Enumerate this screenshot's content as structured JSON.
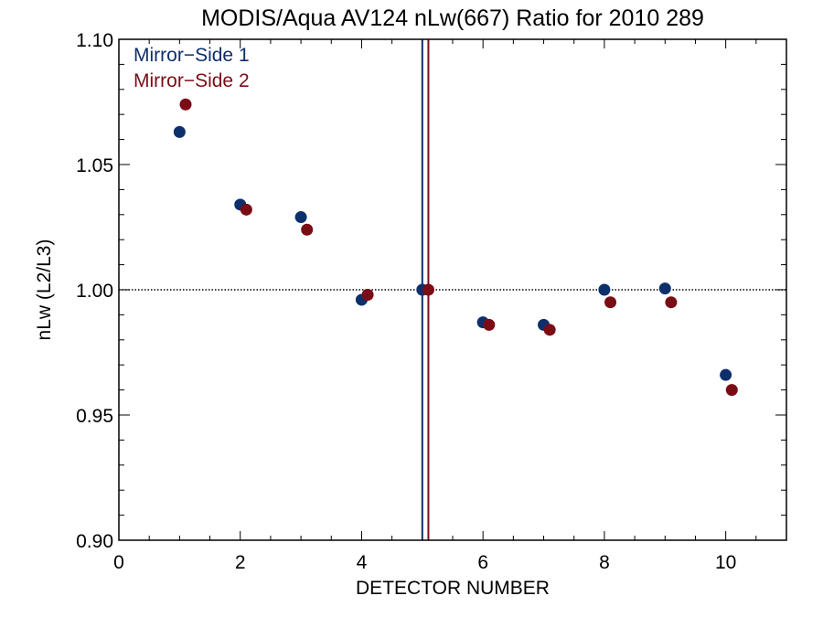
{
  "chart_data": {
    "type": "scatter",
    "title": "MODIS/Aqua AV124 nLw(667) Ratio for 2010 289",
    "xlabel": "DETECTOR NUMBER",
    "ylabel": "nLw (L2/L3)",
    "xlim": [
      0,
      11
    ],
    "ylim": [
      0.9,
      1.1
    ],
    "xticks": [
      0,
      2,
      4,
      6,
      8,
      10
    ],
    "xtick_labels": [
      "0",
      "2",
      "4",
      "6",
      "8",
      "10"
    ],
    "yticks": [
      0.9,
      0.95,
      1.0,
      1.05,
      1.1
    ],
    "ytick_labels": [
      "0.90",
      "0.95",
      "1.00",
      "1.05",
      "1.10"
    ],
    "reference_line_y": 1.0,
    "legend_position": "top-left",
    "series": [
      {
        "name": "Mirror−Side 1",
        "color": "#0d2f6b",
        "x": [
          1,
          2,
          3,
          4,
          5,
          6,
          7,
          8,
          9,
          10
        ],
        "y": [
          1.063,
          1.034,
          1.029,
          0.996,
          1.0,
          0.987,
          0.986,
          1.0,
          1.0005,
          0.966
        ],
        "vline_x": 5.0
      },
      {
        "name": "Mirror−Side 2",
        "color": "#7a0c16",
        "x": [
          1.1,
          2.1,
          3.1,
          4.1,
          5.1,
          6.1,
          7.1,
          8.1,
          9.1,
          10.1
        ],
        "y": [
          1.074,
          1.032,
          1.024,
          0.998,
          1.0,
          0.986,
          0.984,
          0.995,
          0.995,
          0.96
        ],
        "vline_x": 5.1
      }
    ]
  }
}
